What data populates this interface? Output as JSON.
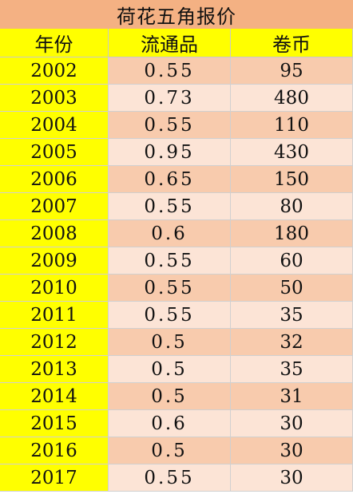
{
  "title": "荷花五角报价",
  "headers": {
    "year": "年份",
    "circulation": "流通品",
    "roll": "卷币"
  },
  "colors": {
    "title_bg": "#f4b183",
    "year_bg": "#ffff00",
    "row_dark": "#f8cbad",
    "row_light": "#fce4d6"
  },
  "rows": [
    {
      "year": "2002",
      "circulation": "0.55",
      "roll": "95"
    },
    {
      "year": "2003",
      "circulation": "0.73",
      "roll": "480"
    },
    {
      "year": "2004",
      "circulation": "0.55",
      "roll": "110"
    },
    {
      "year": "2005",
      "circulation": "0.95",
      "roll": "430"
    },
    {
      "year": "2006",
      "circulation": "0.65",
      "roll": "150"
    },
    {
      "year": "2007",
      "circulation": "0.55",
      "roll": "80"
    },
    {
      "year": "2008",
      "circulation": "0.6",
      "roll": "180"
    },
    {
      "year": "2009",
      "circulation": "0.55",
      "roll": "60"
    },
    {
      "year": "2010",
      "circulation": "0.55",
      "roll": "50"
    },
    {
      "year": "2011",
      "circulation": "0.55",
      "roll": "35"
    },
    {
      "year": "2012",
      "circulation": "0.5",
      "roll": "32"
    },
    {
      "year": "2013",
      "circulation": "0.5",
      "roll": "35"
    },
    {
      "year": "2014",
      "circulation": "0.5",
      "roll": "31"
    },
    {
      "year": "2015",
      "circulation": "0.6",
      "roll": "30"
    },
    {
      "year": "2016",
      "circulation": "0.5",
      "roll": "30"
    },
    {
      "year": "2017",
      "circulation": "0.55",
      "roll": "30"
    }
  ]
}
